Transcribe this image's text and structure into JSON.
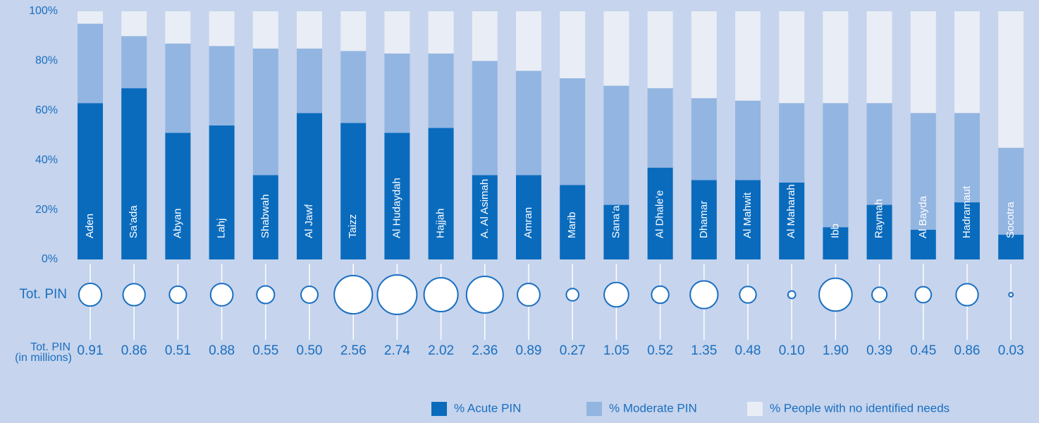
{
  "chart_data": {
    "type": "bar",
    "stacked": true,
    "categories": [
      "Aden",
      "Sa’ada",
      "Abyan",
      "Lahj",
      "Shabwah",
      "Al Jawf",
      "Taizz",
      "Al Hudaydah",
      "Hajjah",
      "A. Al Asimah",
      "Amran",
      "Marib",
      "Sana’a",
      "Al Dhale’e",
      "Dhamar",
      "Al Mahwit",
      "Al Maharah",
      "Ibb",
      "Raymah",
      "Al Bayda",
      "Hadramaut",
      "Socotra"
    ],
    "series": [
      {
        "name": "% Acute PIN",
        "color": "#0a6bbd",
        "values": [
          63,
          69,
          51,
          54,
          34,
          59,
          55,
          51,
          53,
          34,
          34,
          30,
          22,
          37,
          32,
          32,
          31,
          13,
          22,
          12,
          23,
          10
        ]
      },
      {
        "name": "% Moderate PIN",
        "color": "#93b5e1",
        "values": [
          32,
          21,
          36,
          32,
          51,
          26,
          29,
          32,
          30,
          46,
          42,
          43,
          48,
          32,
          33,
          32,
          32,
          50,
          41,
          47,
          36,
          35
        ]
      },
      {
        "name": "% People with no identified needs",
        "color": "#e9edf5",
        "values": [
          5,
          10,
          13,
          14,
          15,
          15,
          16,
          17,
          17,
          20,
          24,
          27,
          30,
          31,
          35,
          36,
          37,
          37,
          37,
          41,
          41,
          55
        ]
      }
    ],
    "ylim": [
      0,
      100
    ],
    "yticks": [
      {
        "value": 0,
        "label": "0%"
      },
      {
        "value": 20,
        "label": "20%"
      },
      {
        "value": 40,
        "label": "40%"
      },
      {
        "value": 60,
        "label": "60%"
      },
      {
        "value": 80,
        "label": "80%"
      },
      {
        "value": 100,
        "label": "100%"
      }
    ],
    "pin_label": "Tot. PIN",
    "pin_axis_label": [
      "Tot. PIN",
      "(in millions)"
    ],
    "pin_values": [
      0.91,
      0.86,
      0.51,
      0.88,
      0.55,
      0.5,
      2.56,
      2.74,
      2.02,
      2.36,
      0.89,
      0.27,
      1.05,
      0.52,
      1.35,
      0.48,
      0.1,
      1.9,
      0.39,
      0.45,
      0.86,
      0.03
    ],
    "pin_value_labels": [
      "0.91",
      "0.86",
      "0.51",
      "0.88",
      "0.55",
      "0.50",
      "2.56",
      "2.74",
      "2.02",
      "2.36",
      "0.89",
      "0.27",
      "1.05",
      "0.52",
      "1.35",
      "0.48",
      "0.10",
      "1.90",
      "0.39",
      "0.45",
      "0.86",
      "0.03"
    ]
  }
}
